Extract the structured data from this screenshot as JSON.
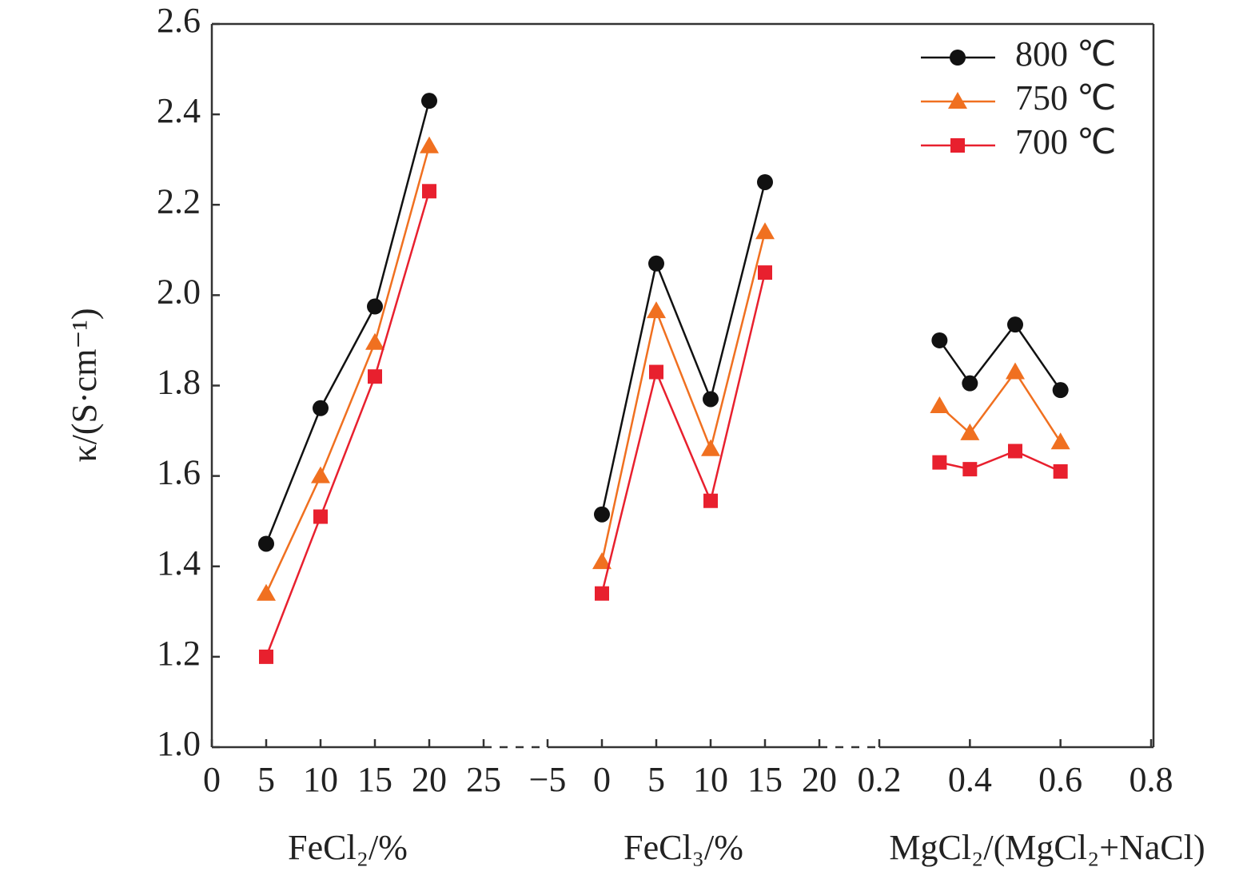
{
  "chart_data": [
    {
      "type": "line",
      "y_label": "κ/(S·cm⁻¹)",
      "x_label": "FeCl₂/%",
      "ylim": [
        1.0,
        2.6
      ],
      "yticks": [
        {
          "value": 1.0,
          "label": "1.0"
        },
        1.2,
        1.4,
        1.6,
        1.8,
        {
          "value": 2.0,
          "label": "2.0"
        },
        2.2,
        2.4,
        2.6
      ],
      "xlim": [
        0,
        25
      ],
      "xticks": [
        0,
        5,
        10,
        15,
        20,
        25
      ],
      "x": [
        5,
        10,
        15,
        20
      ],
      "series": [
        {
          "color": "#111111",
          "marker": "circle",
          "values": [
            1.45,
            1.75,
            1.975,
            2.43
          ]
        },
        {
          "color": "#f07020",
          "marker": "triangle",
          "values": [
            1.34,
            1.6,
            1.895,
            2.33
          ]
        },
        {
          "color": "#e8202e",
          "marker": "square",
          "values": [
            1.2,
            1.51,
            1.82,
            2.23
          ]
        }
      ]
    },
    {
      "type": "line",
      "x_label": "FeCl₃/%",
      "xlim": [
        -5,
        20
      ],
      "xticks": [
        {
          "value": -5,
          "label": "−5"
        },
        0,
        5,
        10,
        15,
        20
      ],
      "x": [
        0,
        5,
        10,
        15
      ],
      "series": [
        {
          "color": "#111111",
          "marker": "circle",
          "values": [
            1.515,
            2.07,
            1.77,
            2.25
          ]
        },
        {
          "color": "#f07020",
          "marker": "triangle",
          "values": [
            1.41,
            1.965,
            1.66,
            2.14
          ]
        },
        {
          "color": "#e8202e",
          "marker": "square",
          "values": [
            1.34,
            1.83,
            1.545,
            2.05
          ]
        }
      ]
    },
    {
      "type": "line",
      "x_label": "MgCl₂/(MgCl₂+NaCl)",
      "xlim": [
        0.2,
        0.8
      ],
      "xticks": [
        0.2,
        0.4,
        0.6,
        0.8
      ],
      "x": [
        0.333,
        0.4,
        0.5,
        0.6
      ],
      "legend": "upper right",
      "series": [
        {
          "name": "800 ℃",
          "color": "#111111",
          "marker": "circle",
          "values": [
            1.9,
            1.805,
            1.935,
            1.79
          ]
        },
        {
          "name": "750 ℃",
          "color": "#f07020",
          "marker": "triangle",
          "values": [
            1.755,
            1.695,
            1.83,
            1.675
          ]
        },
        {
          "name": "700 ℃",
          "color": "#e8202e",
          "marker": "square",
          "values": [
            1.63,
            1.615,
            1.655,
            1.61
          ]
        }
      ]
    }
  ]
}
